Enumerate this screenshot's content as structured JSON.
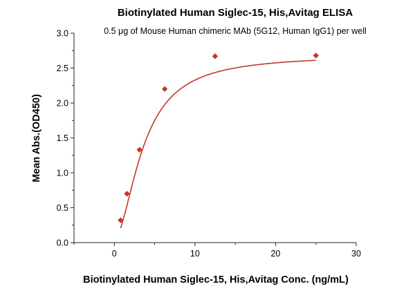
{
  "chart_data": {
    "type": "scatter",
    "title": "Biotinylated Human Siglec-15, His,Avitag ELISA",
    "subtitle": "0.5 μg of Mouse Human chimeric MAb (5G12, Human IgG1) per well",
    "xlabel": "Biotinylated Human Siglec-15, His,Avitag Conc. (ng/mL)",
    "ylabel": "Mean Abs.(OD450)",
    "xlim": [
      -5,
      30
    ],
    "ylim": [
      0,
      3.0
    ],
    "xticks": [
      "0",
      "10",
      "20",
      "30"
    ],
    "yticks": [
      "0.0",
      "0.5",
      "1.0",
      "1.5",
      "2.0",
      "2.5",
      "3.0"
    ],
    "grid": false,
    "series": [
      {
        "color": "#c0392b",
        "marker": "diamond",
        "x": [
          0.781,
          1.563,
          3.125,
          6.25,
          12.5,
          25
        ],
        "y": [
          0.32,
          0.7,
          1.33,
          2.2,
          2.67,
          2.68
        ],
        "fit": "four-parameter logistic"
      }
    ]
  }
}
